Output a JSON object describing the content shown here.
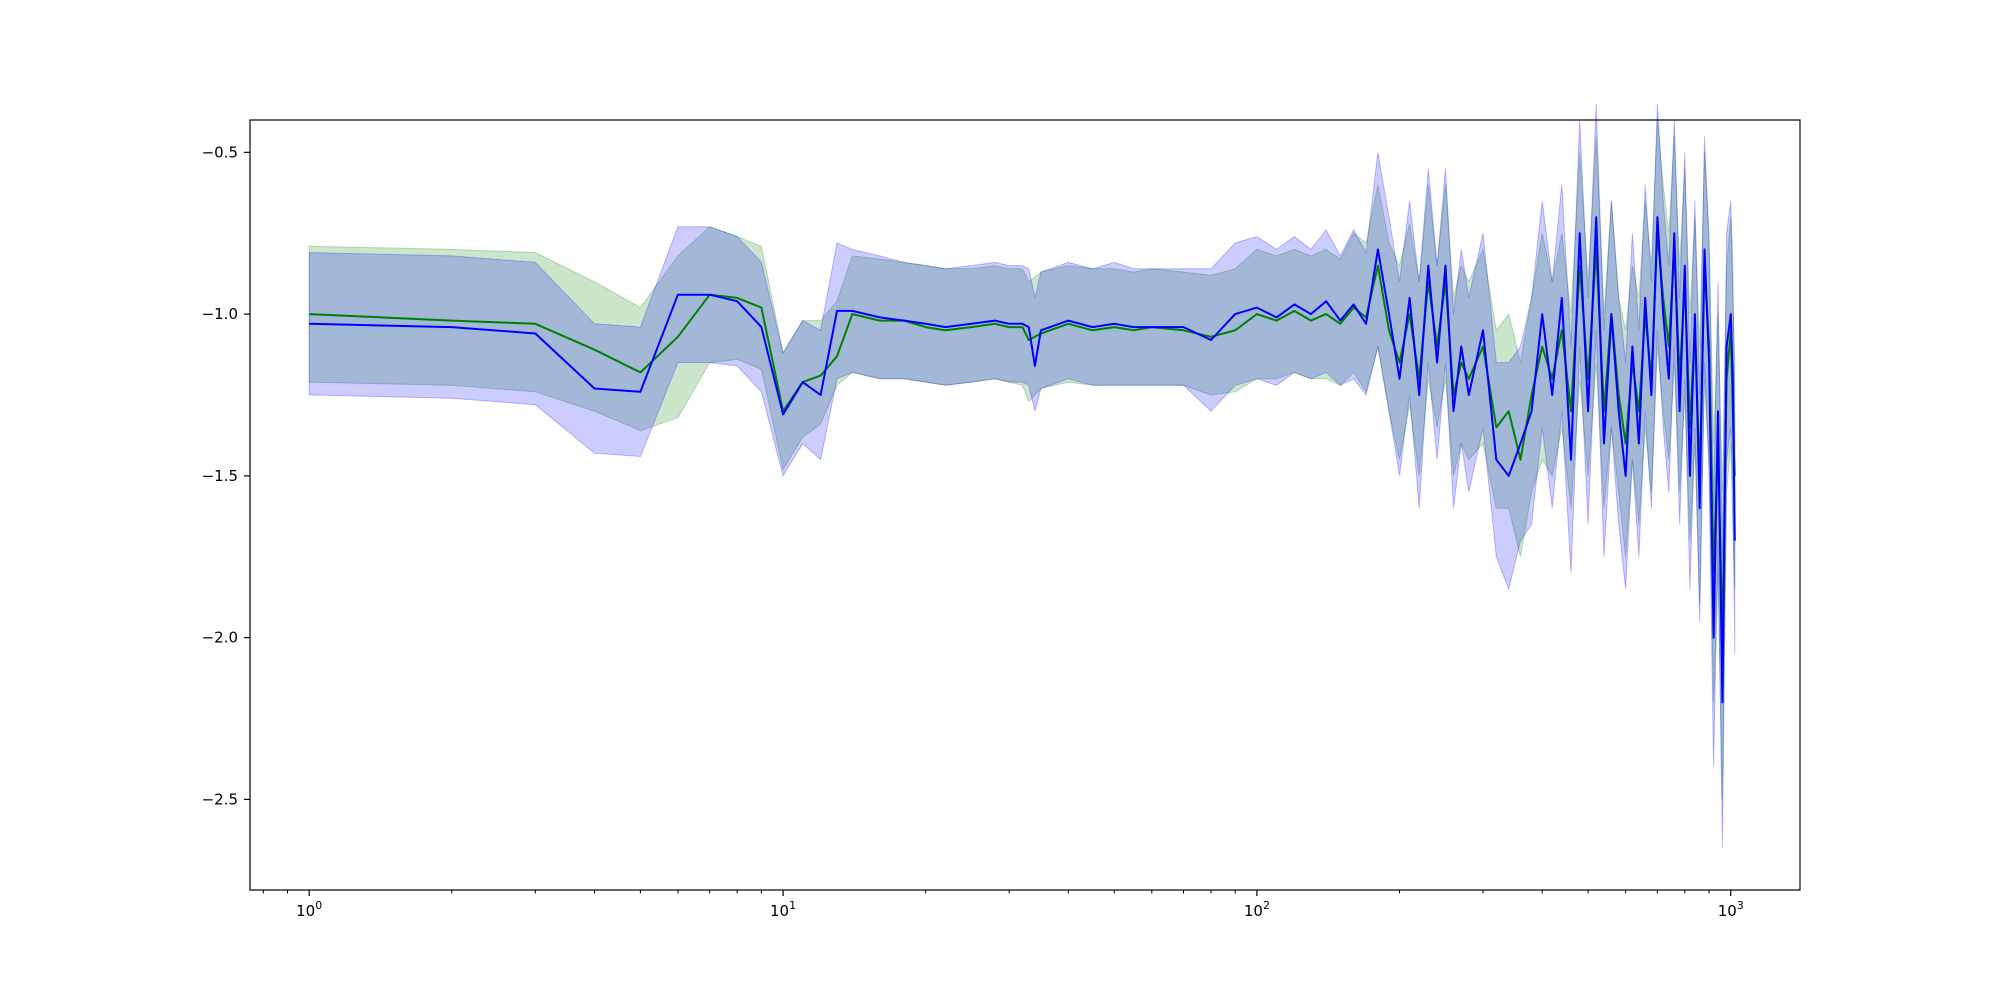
{
  "chart_data": {
    "type": "line",
    "title": "",
    "xlabel": "",
    "ylabel": "",
    "xscale": "log",
    "xlim": [
      0.75,
      1400
    ],
    "ylim": [
      -2.78,
      -0.4
    ],
    "grid": false,
    "legend": "none",
    "x_ticks": [
      1,
      10,
      100,
      1000
    ],
    "x_tick_labels": [
      {
        "base": "10",
        "exp": "0"
      },
      {
        "base": "10",
        "exp": "1"
      },
      {
        "base": "10",
        "exp": "2"
      },
      {
        "base": "10",
        "exp": "3"
      }
    ],
    "y_ticks": [
      -0.5,
      -1.0,
      -1.5,
      -2.0,
      -2.5
    ],
    "y_tick_labels": [
      "−0.5",
      "−1.0",
      "−1.5",
      "−2.0",
      "−2.5"
    ],
    "series": [
      {
        "color": "#008000",
        "band_color": "#008000",
        "band_opacity": 0.2,
        "x": [
          1,
          2,
          3,
          4,
          5,
          6,
          7,
          8,
          9,
          10,
          11,
          12,
          13,
          14,
          16,
          18,
          20,
          22,
          25,
          28,
          30,
          32,
          33,
          35,
          40,
          45,
          50,
          55,
          60,
          70,
          80,
          90,
          100,
          110,
          120,
          130,
          140,
          150,
          160,
          170,
          180,
          190,
          200,
          210,
          220,
          230,
          240,
          250,
          260,
          270,
          280,
          300,
          320,
          340,
          360,
          380,
          400,
          420,
          440,
          460,
          480,
          500,
          520,
          540,
          560,
          580,
          600,
          620,
          640,
          660,
          680,
          700,
          720,
          740,
          760,
          780,
          800,
          820,
          840,
          860,
          880,
          900,
          920,
          940,
          960,
          980,
          1000,
          1010,
          1020
        ],
        "y": [
          -1.0,
          -1.02,
          -1.03,
          -1.11,
          -1.18,
          -1.07,
          -0.94,
          -0.95,
          -0.98,
          -1.3,
          -1.21,
          -1.19,
          -1.13,
          -1.0,
          -1.02,
          -1.02,
          -1.04,
          -1.05,
          -1.04,
          -1.03,
          -1.04,
          -1.04,
          -1.08,
          -1.06,
          -1.03,
          -1.05,
          -1.04,
          -1.05,
          -1.04,
          -1.05,
          -1.07,
          -1.05,
          -1.0,
          -1.02,
          -0.99,
          -1.02,
          -1.0,
          -1.03,
          -0.98,
          -1.01,
          -0.85,
          -1.05,
          -1.15,
          -1.0,
          -1.2,
          -0.9,
          -1.1,
          -0.9,
          -1.25,
          -1.15,
          -1.2,
          -1.1,
          -1.35,
          -1.3,
          -1.45,
          -1.25,
          -1.1,
          -1.2,
          -1.05,
          -1.3,
          -0.85,
          -1.2,
          -0.8,
          -1.3,
          -1.0,
          -1.25,
          -1.4,
          -1.15,
          -1.3,
          -1.0,
          -1.2,
          -0.75,
          -0.95,
          -1.1,
          -0.8,
          -1.2,
          -0.9,
          -1.35,
          -1.05,
          -1.5,
          -0.85,
          -1.1,
          -1.8,
          -1.4,
          -2.0,
          -1.2,
          -1.05,
          -1.3,
          -1.5
        ],
        "lower": [
          -1.21,
          -1.22,
          -1.24,
          -1.3,
          -1.36,
          -1.32,
          -1.15,
          -1.14,
          -1.17,
          -1.48,
          -1.38,
          -1.34,
          -1.22,
          -1.18,
          -1.2,
          -1.2,
          -1.21,
          -1.22,
          -1.21,
          -1.2,
          -1.21,
          -1.22,
          -1.27,
          -1.23,
          -1.21,
          -1.22,
          -1.22,
          -1.22,
          -1.22,
          -1.22,
          -1.25,
          -1.24,
          -1.2,
          -1.2,
          -1.18,
          -1.2,
          -1.2,
          -1.22,
          -1.18,
          -1.24,
          -1.1,
          -1.3,
          -1.45,
          -1.28,
          -1.5,
          -1.2,
          -1.35,
          -1.2,
          -1.5,
          -1.4,
          -1.45,
          -1.4,
          -1.6,
          -1.6,
          -1.75,
          -1.55,
          -1.45,
          -1.5,
          -1.35,
          -1.6,
          -1.2,
          -1.5,
          -1.15,
          -1.6,
          -1.35,
          -1.55,
          -1.75,
          -1.45,
          -1.65,
          -1.35,
          -1.55,
          -1.1,
          -1.3,
          -1.45,
          -1.15,
          -1.55,
          -1.25,
          -1.7,
          -1.4,
          -1.9,
          -1.2,
          -1.45,
          -2.2,
          -1.8,
          -2.5,
          -1.55,
          -1.4,
          -1.65,
          -1.85
        ],
        "upper": [
          -0.79,
          -0.8,
          -0.81,
          -0.9,
          -0.98,
          -0.82,
          -0.73,
          -0.76,
          -0.79,
          -1.12,
          -1.02,
          -1.02,
          -0.96,
          -0.82,
          -0.83,
          -0.84,
          -0.85,
          -0.86,
          -0.86,
          -0.85,
          -0.86,
          -0.86,
          -0.9,
          -0.87,
          -0.85,
          -0.86,
          -0.86,
          -0.87,
          -0.86,
          -0.87,
          -0.88,
          -0.86,
          -0.8,
          -0.82,
          -0.8,
          -0.82,
          -0.8,
          -0.83,
          -0.75,
          -0.78,
          -0.6,
          -0.78,
          -0.85,
          -0.72,
          -0.9,
          -0.6,
          -0.85,
          -0.6,
          -0.95,
          -0.85,
          -0.9,
          -0.8,
          -1.05,
          -1.0,
          -1.15,
          -0.95,
          -0.75,
          -0.9,
          -0.75,
          -1.0,
          -0.5,
          -0.9,
          -0.45,
          -1.0,
          -0.65,
          -0.95,
          -1.05,
          -0.85,
          -0.95,
          -0.65,
          -0.85,
          -0.4,
          -0.6,
          -0.75,
          -0.45,
          -0.85,
          -0.55,
          -1.0,
          -0.7,
          -1.1,
          -0.5,
          -0.75,
          -1.4,
          -1.0,
          -1.55,
          -0.85,
          -0.7,
          -0.95,
          -1.15
        ]
      },
      {
        "color": "#0000ff",
        "band_color": "#0000ff",
        "band_opacity": 0.2,
        "x": [
          1,
          2,
          3,
          4,
          5,
          6,
          7,
          8,
          9,
          10,
          11,
          12,
          13,
          14,
          16,
          18,
          20,
          22,
          25,
          28,
          30,
          32,
          33,
          34,
          35,
          40,
          45,
          50,
          55,
          60,
          70,
          80,
          90,
          100,
          110,
          120,
          130,
          140,
          150,
          160,
          170,
          180,
          190,
          200,
          210,
          220,
          230,
          240,
          250,
          260,
          270,
          280,
          300,
          320,
          340,
          360,
          380,
          400,
          420,
          440,
          460,
          480,
          500,
          520,
          540,
          560,
          580,
          600,
          620,
          640,
          660,
          680,
          700,
          720,
          740,
          760,
          780,
          800,
          820,
          840,
          860,
          880,
          900,
          920,
          940,
          960,
          980,
          1000,
          1010,
          1020
        ],
        "y": [
          -1.03,
          -1.04,
          -1.06,
          -1.23,
          -1.24,
          -0.94,
          -0.94,
          -0.96,
          -1.04,
          -1.31,
          -1.21,
          -1.25,
          -0.99,
          -0.99,
          -1.01,
          -1.02,
          -1.03,
          -1.04,
          -1.03,
          -1.02,
          -1.03,
          -1.03,
          -1.04,
          -1.16,
          -1.05,
          -1.02,
          -1.04,
          -1.03,
          -1.04,
          -1.04,
          -1.04,
          -1.08,
          -1.0,
          -0.98,
          -1.01,
          -0.97,
          -1.0,
          -0.96,
          -1.02,
          -0.97,
          -1.03,
          -0.8,
          -1.0,
          -1.2,
          -0.95,
          -1.25,
          -0.85,
          -1.15,
          -0.85,
          -1.3,
          -1.1,
          -1.25,
          -1.05,
          -1.45,
          -1.5,
          -1.4,
          -1.3,
          -1.0,
          -1.25,
          -0.95,
          -1.45,
          -0.75,
          -1.3,
          -0.7,
          -1.4,
          -1.0,
          -1.3,
          -1.5,
          -1.1,
          -1.4,
          -0.95,
          -1.25,
          -0.7,
          -1.0,
          -1.2,
          -0.75,
          -1.3,
          -0.85,
          -1.5,
          -1.0,
          -1.6,
          -0.8,
          -1.15,
          -2.0,
          -1.3,
          -2.2,
          -1.1,
          -1.0,
          -1.2,
          -1.7
        ],
        "lower": [
          -1.25,
          -1.26,
          -1.28,
          -1.43,
          -1.44,
          -1.15,
          -1.15,
          -1.16,
          -1.24,
          -1.5,
          -1.4,
          -1.45,
          -1.2,
          -1.18,
          -1.2,
          -1.2,
          -1.21,
          -1.22,
          -1.21,
          -1.2,
          -1.21,
          -1.21,
          -1.22,
          -1.3,
          -1.23,
          -1.2,
          -1.22,
          -1.22,
          -1.22,
          -1.22,
          -1.22,
          -1.3,
          -1.22,
          -1.2,
          -1.22,
          -1.18,
          -1.2,
          -1.18,
          -1.22,
          -1.2,
          -1.25,
          -1.1,
          -1.3,
          -1.5,
          -1.25,
          -1.6,
          -1.15,
          -1.45,
          -1.15,
          -1.6,
          -1.4,
          -1.55,
          -1.35,
          -1.75,
          -1.85,
          -1.7,
          -1.65,
          -1.35,
          -1.6,
          -1.3,
          -1.8,
          -1.1,
          -1.65,
          -1.05,
          -1.75,
          -1.35,
          -1.65,
          -1.85,
          -1.45,
          -1.75,
          -1.3,
          -1.6,
          -1.05,
          -1.35,
          -1.55,
          -1.1,
          -1.65,
          -1.2,
          -1.85,
          -1.35,
          -1.95,
          -1.15,
          -1.5,
          -2.4,
          -1.7,
          -2.65,
          -1.45,
          -1.35,
          -1.55,
          -2.05
        ],
        "upper": [
          -0.81,
          -0.82,
          -0.84,
          -1.03,
          -1.04,
          -0.73,
          -0.73,
          -0.76,
          -0.84,
          -1.12,
          -1.02,
          -1.05,
          -0.78,
          -0.8,
          -0.82,
          -0.84,
          -0.85,
          -0.86,
          -0.85,
          -0.84,
          -0.85,
          -0.85,
          -0.86,
          -0.95,
          -0.87,
          -0.84,
          -0.86,
          -0.84,
          -0.86,
          -0.86,
          -0.86,
          -0.86,
          -0.78,
          -0.76,
          -0.8,
          -0.76,
          -0.8,
          -0.74,
          -0.82,
          -0.74,
          -0.81,
          -0.5,
          -0.7,
          -0.9,
          -0.65,
          -0.9,
          -0.55,
          -0.85,
          -0.55,
          -1.0,
          -0.8,
          -0.95,
          -0.75,
          -1.15,
          -1.15,
          -1.1,
          -0.95,
          -0.65,
          -0.9,
          -0.6,
          -1.1,
          -0.4,
          -0.95,
          -0.35,
          -1.05,
          -0.65,
          -0.95,
          -1.15,
          -0.75,
          -1.05,
          -0.6,
          -0.9,
          -0.35,
          -0.65,
          -0.85,
          -0.4,
          -0.95,
          -0.5,
          -1.15,
          -0.65,
          -1.25,
          -0.45,
          -0.8,
          -1.6,
          -0.9,
          -1.75,
          -0.75,
          -0.65,
          -0.85,
          -1.35
        ]
      }
    ]
  }
}
